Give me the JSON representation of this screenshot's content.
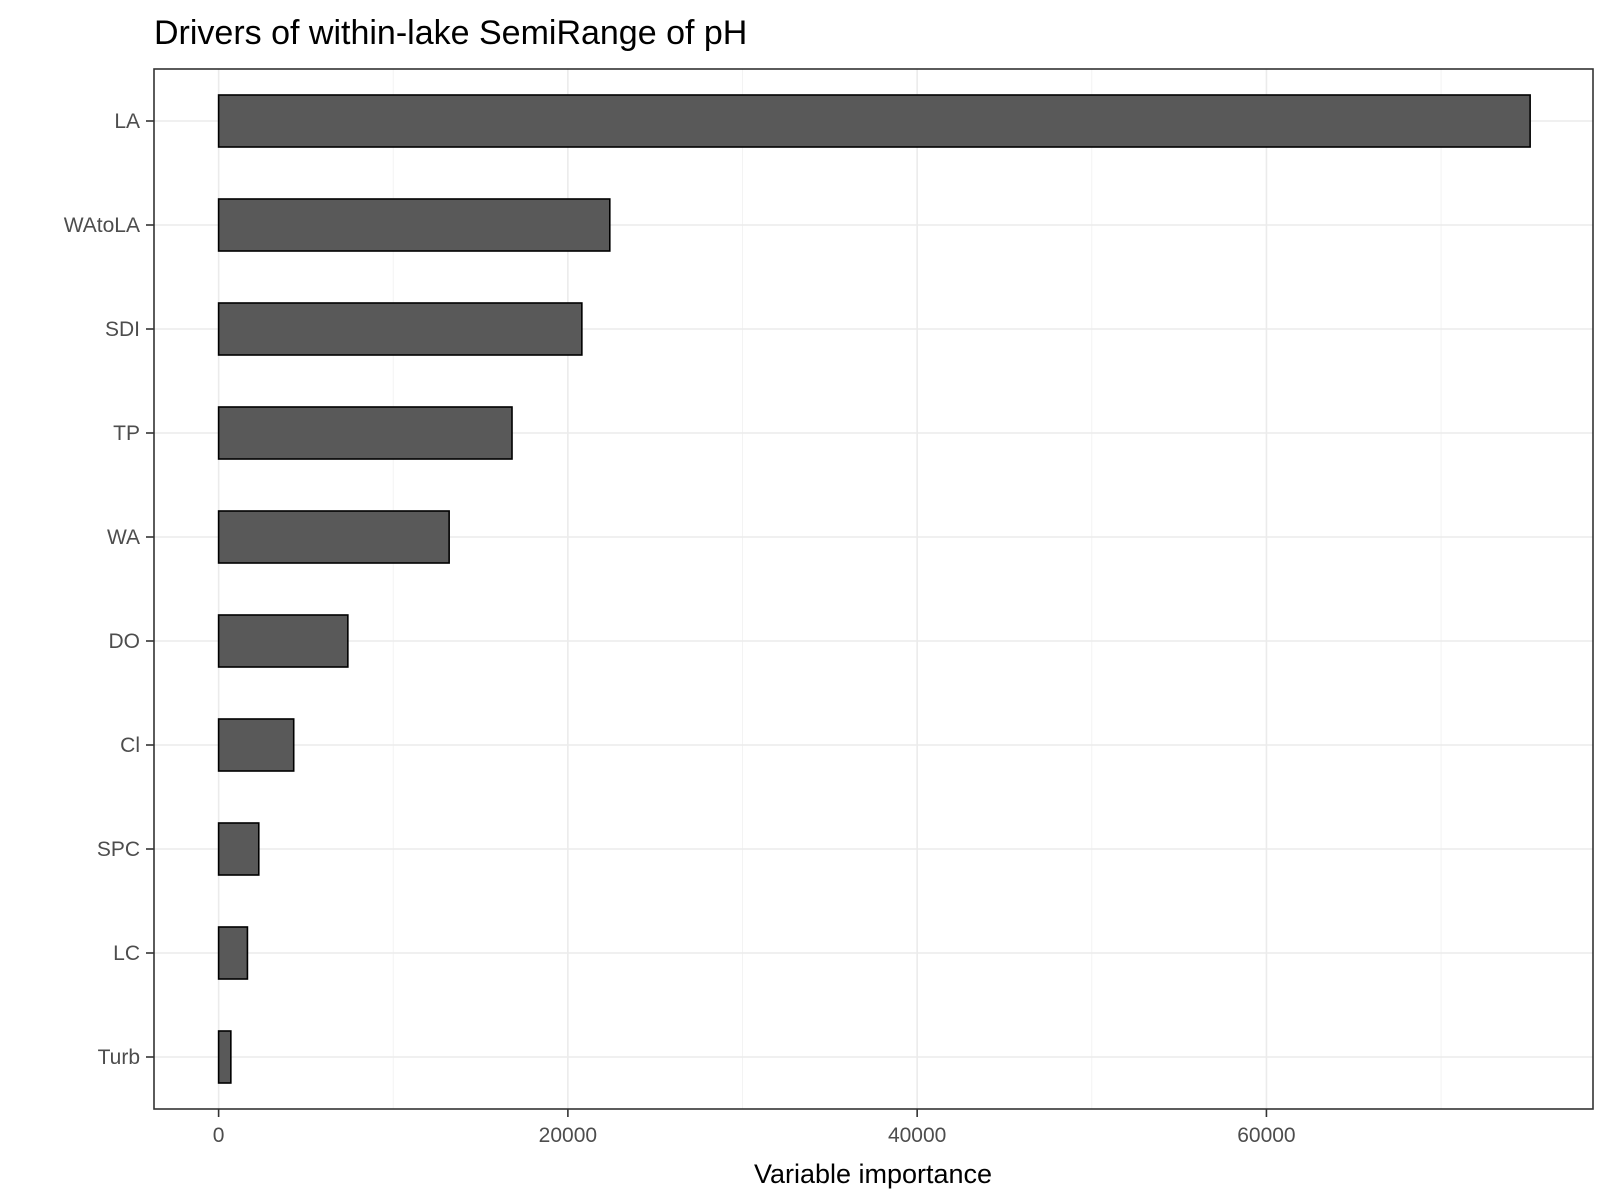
{
  "chart_data": {
    "type": "bar",
    "orientation": "horizontal",
    "title": "Drivers of within-lake SemiRange of pH",
    "xlabel": "Variable importance",
    "ylabel": "",
    "categories": [
      "LA",
      "WAtoLA",
      "SDI",
      "TP",
      "WA",
      "DO",
      "Cl",
      "SPC",
      "LC",
      "Turb"
    ],
    "values": [
      75100,
      22400,
      20800,
      16800,
      13200,
      7400,
      4300,
      2300,
      1650,
      700
    ],
    "xlim": [
      -3700,
      78700
    ],
    "x_ticks": [
      0,
      20000,
      40000,
      60000
    ],
    "x_tick_labels": [
      "0",
      "20000",
      "40000",
      "60000"
    ],
    "grid": true,
    "legend": "none",
    "bar_color": "#595959",
    "bar_edge_color": "#000000"
  }
}
